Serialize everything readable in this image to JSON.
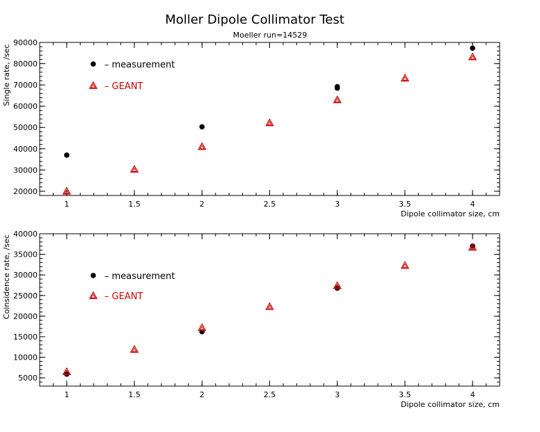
{
  "page": {
    "title": "Moller Dipole Collimator Test",
    "subtitle": "Moeller run=14529"
  },
  "colors": {
    "measurement": "#000000",
    "geant": "#cc0000",
    "axis": "#000000",
    "background": "#ffffff"
  },
  "chart_data": [
    {
      "type": "scatter",
      "xlabel": "Dipole collimator size, cm",
      "ylabel": "Single rate, /sec",
      "xlim": [
        0.8,
        4.2
      ],
      "ylim": [
        18000,
        90000
      ],
      "x_ticks": [
        1,
        1.5,
        2,
        2.5,
        3,
        3.5,
        4
      ],
      "x_tick_labels": [
        "1",
        "1.5",
        "2",
        "2.5",
        "3",
        "3.5",
        "4"
      ],
      "y_ticks": [
        20000,
        30000,
        40000,
        50000,
        60000,
        70000,
        80000,
        90000
      ],
      "y_tick_labels": [
        "20000",
        "30000",
        "40000",
        "50000",
        "60000",
        "70000",
        "80000",
        "90000"
      ],
      "legend_position": "top-left",
      "series": [
        {
          "name": "– measurement",
          "marker": "circle",
          "points": [
            [
              1,
              37000
            ],
            [
              2,
              50300
            ],
            [
              3,
              68500
            ],
            [
              3,
              69200
            ],
            [
              4,
              87300
            ]
          ]
        },
        {
          "name": "– GEANT",
          "marker": "triangle",
          "points": [
            [
              1,
              20000
            ],
            [
              1.5,
              30300
            ],
            [
              2,
              41000
            ],
            [
              2.5,
              52200
            ],
            [
              3,
              63000
            ],
            [
              3.5,
              73200
            ],
            [
              4,
              83200
            ]
          ]
        }
      ]
    },
    {
      "type": "scatter",
      "xlabel": "Dipole collimator size, cm",
      "ylabel": "Coinsidence rate, /sec",
      "xlim": [
        0.8,
        4.2
      ],
      "ylim": [
        3000,
        40000
      ],
      "x_ticks": [
        1,
        1.5,
        2,
        2.5,
        3,
        3.5,
        4
      ],
      "x_tick_labels": [
        "1",
        "1.5",
        "2",
        "2.5",
        "3",
        "3.5",
        "4"
      ],
      "y_ticks": [
        5000,
        10000,
        15000,
        20000,
        25000,
        30000,
        35000,
        40000
      ],
      "y_tick_labels": [
        "5000",
        "10000",
        "15000",
        "20000",
        "25000",
        "30000",
        "35000",
        "40000"
      ],
      "legend_position": "top-left",
      "series": [
        {
          "name": "– measurement",
          "marker": "circle",
          "points": [
            [
              1,
              5900
            ],
            [
              2,
              16200
            ],
            [
              3,
              26800
            ],
            [
              4,
              37000
            ]
          ]
        },
        {
          "name": "– GEANT",
          "marker": "triangle",
          "points": [
            [
              1,
              6500
            ],
            [
              1.5,
              11900
            ],
            [
              2,
              17200
            ],
            [
              2.5,
              22300
            ],
            [
              3,
              27400
            ],
            [
              3.5,
              32300
            ],
            [
              4,
              36700
            ]
          ]
        }
      ]
    }
  ]
}
